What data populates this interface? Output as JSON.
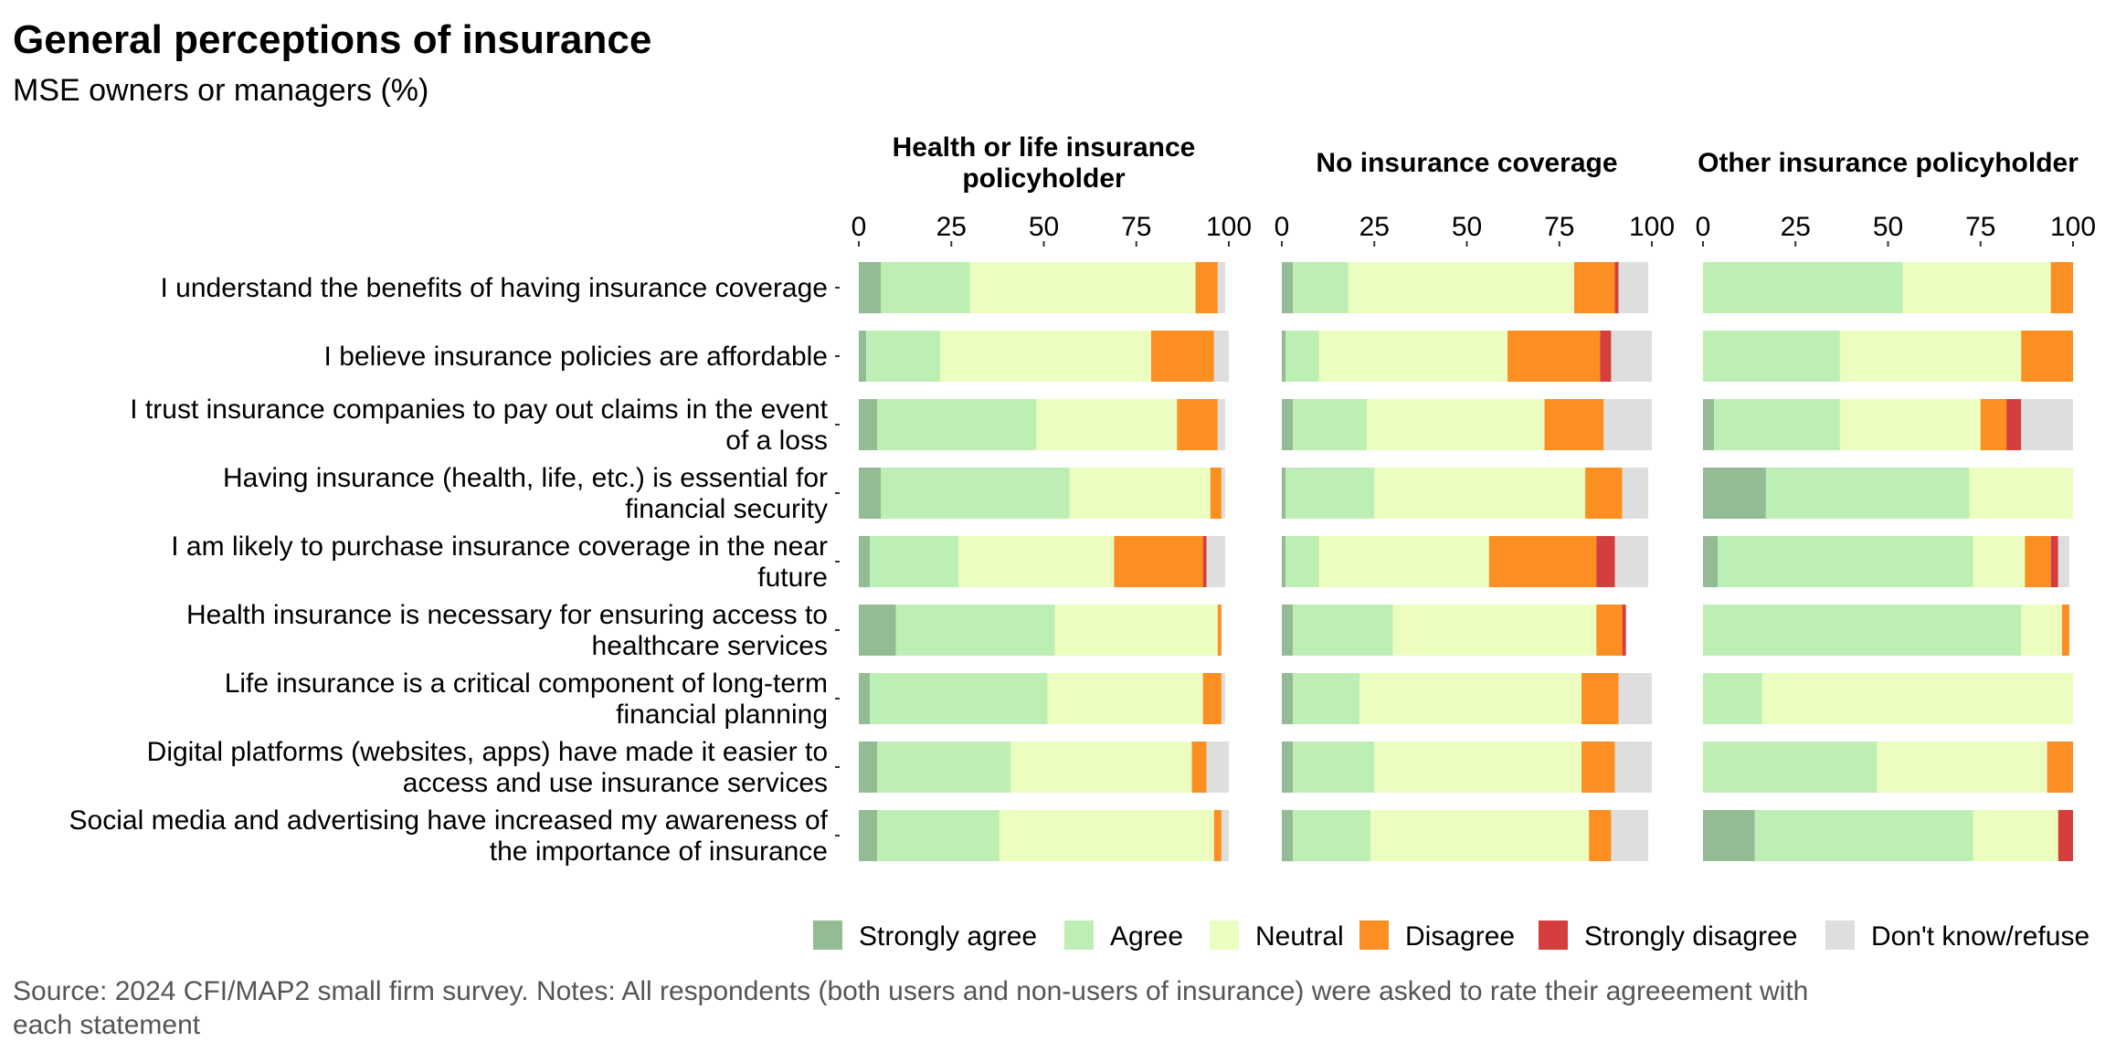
{
  "chart_data": {
    "type": "bar",
    "orientation": "horizontal",
    "stacked": true,
    "title": "General perceptions of insurance",
    "subtitle": "MSE owners or managers (%)",
    "source_lines": [
      "Source: 2024 CFI/MAP2 small firm survey. Notes: All respondents (both users and non-users of insurance) were asked to rate their agreeement with",
      "each statement"
    ],
    "xlim": [
      0,
      100
    ],
    "xticks": [
      "0",
      "25",
      "50",
      "75",
      "100"
    ],
    "grid": false,
    "legend_position": "bottom-right",
    "legend": [
      {
        "name": "Strongly agree",
        "color": "#93bb94"
      },
      {
        "name": "Agree",
        "color": "#bdefb5"
      },
      {
        "name": "Neutral",
        "color": "#ecfebf"
      },
      {
        "name": "Disagree",
        "color": "#fb8f21"
      },
      {
        "name": "Strongly disagree",
        "color": "#d43f3e"
      },
      {
        "name": "Don't know/refuse",
        "color": "#dedede"
      }
    ],
    "categories": [
      [
        "I understand the benefits of having insurance coverage"
      ],
      [
        "I believe insurance policies are affordable"
      ],
      [
        "I trust insurance companies to pay out claims in the event",
        "of a loss"
      ],
      [
        "Having insurance (health, life, etc.) is essential for",
        "financial security"
      ],
      [
        "I am likely to purchase insurance coverage in the near",
        "future"
      ],
      [
        "Health insurance is necessary for ensuring access to",
        "healthcare services"
      ],
      [
        "Life insurance is a critical component of long-term",
        "financial planning"
      ],
      [
        "Digital platforms (websites, apps) have made it easier to",
        "access and use insurance services"
      ],
      [
        "Social media and advertising have increased my awareness of",
        "the importance of insurance"
      ]
    ],
    "facets": [
      {
        "title_lines": [
          "Health or life insurance",
          "policyholder"
        ],
        "rows": [
          [
            6,
            24,
            61,
            6,
            0,
            2
          ],
          [
            2,
            20,
            57,
            17,
            0,
            4
          ],
          [
            5,
            43,
            38,
            11,
            0,
            2
          ],
          [
            6,
            51,
            38,
            3,
            0,
            1
          ],
          [
            3,
            24,
            42,
            24,
            1,
            5
          ],
          [
            10,
            43,
            44,
            1,
            0,
            0
          ],
          [
            3,
            48,
            42,
            5,
            0,
            1
          ],
          [
            5,
            36,
            49,
            4,
            0,
            6
          ],
          [
            5,
            33,
            58,
            2,
            0,
            2
          ]
        ]
      },
      {
        "title_lines": [
          "No insurance coverage"
        ],
        "rows": [
          [
            3,
            15,
            61,
            11,
            1,
            8
          ],
          [
            1,
            9,
            51,
            25,
            3,
            11
          ],
          [
            3,
            20,
            48,
            16,
            0,
            13
          ],
          [
            1,
            24,
            57,
            10,
            0,
            7
          ],
          [
            1,
            9,
            46,
            29,
            5,
            9
          ],
          [
            3,
            27,
            55,
            7,
            1,
            0
          ],
          [
            3,
            18,
            60,
            10,
            0,
            9
          ],
          [
            3,
            22,
            56,
            9,
            0,
            10
          ],
          [
            3,
            21,
            59,
            6,
            0,
            10
          ]
        ]
      },
      {
        "title_lines": [
          "Other insurance policyholder"
        ],
        "rows": [
          [
            0,
            54,
            40,
            6,
            0,
            0
          ],
          [
            0,
            37,
            49,
            14,
            0,
            0
          ],
          [
            3,
            34,
            38,
            7,
            4,
            14
          ],
          [
            17,
            55,
            28,
            0,
            0,
            0
          ],
          [
            4,
            69,
            14,
            7,
            2,
            3
          ],
          [
            0,
            86,
            11,
            2,
            0,
            0
          ],
          [
            0,
            16,
            84,
            0,
            0,
            0
          ],
          [
            0,
            47,
            46,
            7,
            0,
            0
          ],
          [
            14,
            59,
            23,
            0,
            4,
            0
          ]
        ]
      }
    ]
  }
}
